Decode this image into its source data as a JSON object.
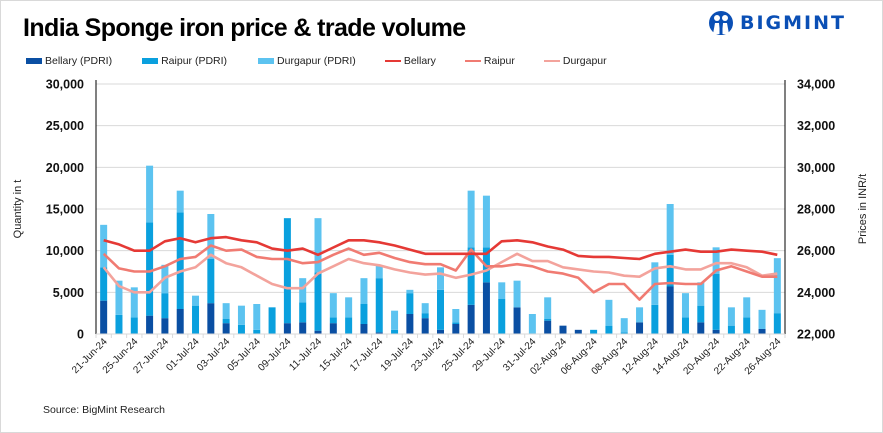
{
  "header": {
    "title": "India Sponge iron price & trade volume",
    "logo_text": "BIGMINT",
    "logo_icon": "bigmint-people-logo-icon"
  },
  "footer": {
    "source": "Source: BigMint Research"
  },
  "colors": {
    "bellary_bar": "#0a4fa3",
    "raipur_bar": "#0aa0de",
    "durgapur_bar": "#5cc3f0",
    "bellary_line": "#e53935",
    "raipur_line": "#f07b72",
    "durgapur_line": "#f3a39c"
  },
  "legend": [
    {
      "label": "Bellary (PDRI)",
      "kind": "bar",
      "color": "#0a4fa3"
    },
    {
      "label": "Raipur (PDRI)",
      "kind": "bar",
      "color": "#0aa0de"
    },
    {
      "label": "Durgapur (PDRI)",
      "kind": "bar",
      "color": "#5cc3f0"
    },
    {
      "label": "Bellary",
      "kind": "line",
      "color": "#e53935"
    },
    {
      "label": "Raipur",
      "kind": "line",
      "color": "#f07b72"
    },
    {
      "label": "Durgapur",
      "kind": "line",
      "color": "#f3a39c"
    }
  ],
  "chart_data": {
    "type": "bar",
    "stacked": true,
    "title": "India Sponge iron price & trade volume",
    "ylabel": "Quantity in t",
    "y2label": "Prices in INR/t",
    "ylim": [
      0,
      30000
    ],
    "y2lim": [
      22000,
      34000
    ],
    "yticks": [
      "0",
      "5,000",
      "10,000",
      "15,000",
      "20,000",
      "25,000",
      "30,000"
    ],
    "y2ticks": [
      "22,000",
      "24,000",
      "26,000",
      "28,000",
      "30,000",
      "32,000",
      "34,000"
    ],
    "grid": true,
    "legend_position": "top",
    "x_tick_labels": [
      "21-Jun-24",
      "25-Jun-24",
      "27-Jun-24",
      "01-Jul-24",
      "03-Jul-24",
      "05-Jul-24",
      "09-Jul-24",
      "11-Jul-24",
      "15-Jul-24",
      "17-Jul-24",
      "19-Jul-24",
      "23-Jul-24",
      "25-Jul-24",
      "29-Jul-24",
      "31-Jul-24",
      "02-Aug-24",
      "06-Aug-24",
      "08-Aug-24",
      "12-Aug-24",
      "14-Aug-24",
      "20-Aug-24",
      "22-Aug-24",
      "26-Aug-24"
    ],
    "x_tick_every": 2,
    "point_count": 45,
    "series": [
      {
        "name": "Bellary (PDRI)",
        "kind": "bar",
        "axis": "left",
        "values": [
          4000,
          0,
          0,
          2200,
          1900,
          3000,
          0,
          3700,
          1300,
          0,
          0,
          0,
          1300,
          1400,
          400,
          1300,
          0,
          1200,
          200,
          0,
          2400,
          1900,
          500,
          1200,
          3500,
          6200,
          0,
          3200,
          0,
          1600,
          1000,
          500,
          0,
          0,
          0,
          1400,
          0,
          5700,
          0,
          1400,
          500,
          0,
          0,
          600,
          0
        ]
      },
      {
        "name": "Raipur (PDRI)",
        "kind": "bar",
        "axis": "left",
        "values": [
          4000,
          2300,
          2000,
          11200,
          3000,
          11600,
          3400,
          5300,
          500,
          1100,
          500,
          3200,
          12600,
          2400,
          7000,
          700,
          2000,
          2400,
          6500,
          500,
          2500,
          600,
          4800,
          200,
          6900,
          4200,
          4200,
          0,
          0,
          200,
          0,
          0,
          500,
          1000,
          200,
          0,
          3500,
          3800,
          2000,
          2000,
          6700,
          1000,
          2000,
          0,
          2500
        ]
      },
      {
        "name": "Durgapur (PDRI)",
        "kind": "bar",
        "axis": "left",
        "values": [
          5100,
          4100,
          3600,
          6800,
          3400,
          2600,
          1200,
          5400,
          1900,
          2300,
          3100,
          0,
          0,
          2900,
          6500,
          2900,
          2400,
          3100,
          1500,
          2300,
          400,
          1200,
          2700,
          1600,
          6800,
          6200,
          2000,
          3200,
          2400,
          2600,
          0,
          0,
          0,
          3100,
          1700,
          1800,
          5100,
          6100,
          2900,
          2800,
          3200,
          2200,
          2400,
          2300,
          6600
        ]
      },
      {
        "name": "Bellary",
        "kind": "line",
        "axis": "right",
        "values": [
          26500,
          26300,
          26000,
          26000,
          26450,
          26600,
          26400,
          26600,
          26650,
          26500,
          26400,
          26100,
          26000,
          26100,
          25800,
          26150,
          26500,
          26500,
          26400,
          26250,
          26050,
          25850,
          25850,
          25850,
          25850,
          25850,
          26450,
          26500,
          26400,
          26200,
          26050,
          25750,
          25700,
          25700,
          25650,
          25600,
          25850,
          25950,
          26050,
          25950,
          25950,
          26050,
          26000,
          25950,
          25800
        ]
      },
      {
        "name": "Raipur",
        "kind": "line",
        "axis": "right",
        "values": [
          25850,
          25150,
          25000,
          25000,
          25250,
          25600,
          25700,
          26250,
          26000,
          26050,
          25700,
          25600,
          25600,
          25400,
          25450,
          25800,
          26100,
          25800,
          25900,
          25650,
          25450,
          25350,
          25350,
          25050,
          26050,
          25250,
          25250,
          25350,
          25250,
          25000,
          24900,
          24700,
          24000,
          24400,
          24400,
          23650,
          24400,
          24450,
          24400,
          24400,
          25050,
          25250,
          25000,
          24750,
          24750
        ]
      },
      {
        "name": "Durgapur",
        "kind": "line",
        "axis": "right",
        "values": [
          25200,
          24300,
          24000,
          24000,
          24700,
          25000,
          25200,
          25800,
          25400,
          25200,
          24800,
          24400,
          24200,
          24200,
          24900,
          25250,
          25600,
          25400,
          25300,
          25100,
          24950,
          24850,
          24900,
          24700,
          24850,
          25050,
          25450,
          25850,
          25500,
          25500,
          25200,
          25100,
          25000,
          24950,
          24800,
          24750,
          25150,
          25250,
          25100,
          25100,
          25400,
          25400,
          25200,
          24800,
          24900
        ]
      }
    ]
  }
}
